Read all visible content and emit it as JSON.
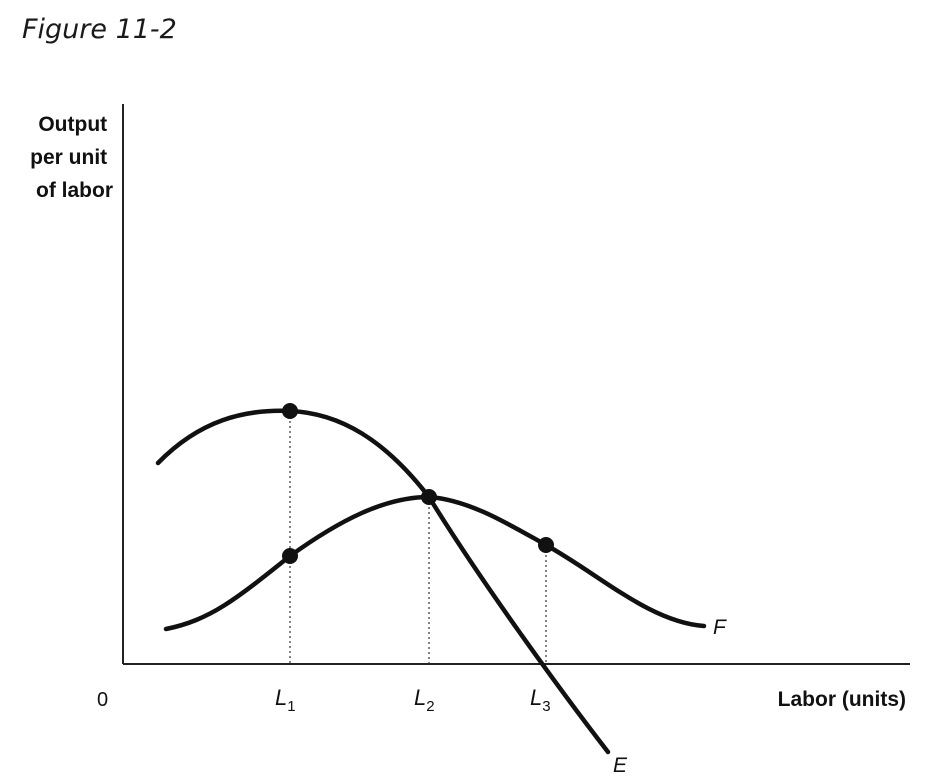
{
  "figure_title": "Figure 11-2",
  "chart_data": {
    "type": "line",
    "ylabel_lines": [
      "Output",
      "per unit",
      "of labor"
    ],
    "xlabel": "Labor (units)",
    "origin_label": "0",
    "x_ticks": [
      {
        "base": "L",
        "sub": "1"
      },
      {
        "base": "L",
        "sub": "2"
      },
      {
        "base": "L",
        "sub": "3"
      }
    ],
    "series": [
      {
        "name": "E"
      },
      {
        "name": "F"
      }
    ]
  }
}
